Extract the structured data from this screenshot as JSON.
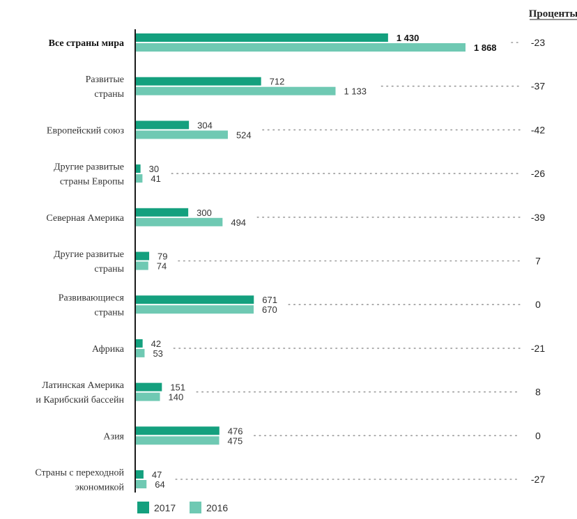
{
  "chart_data": {
    "type": "bar",
    "orientation": "horizontal",
    "percent_header": "Проценты",
    "categories": [
      {
        "lines": [
          "Все страны мира"
        ],
        "bold": true
      },
      {
        "lines": [
          "Развитые",
          "страны"
        ]
      },
      {
        "lines": [
          "Европейский союз"
        ]
      },
      {
        "lines": [
          "Другие развитые",
          "страны Европы"
        ]
      },
      {
        "lines": [
          "Северная Америка"
        ]
      },
      {
        "lines": [
          "Другие развитые",
          "страны"
        ]
      },
      {
        "lines": [
          "Развивающиеся",
          "страны"
        ]
      },
      {
        "lines": [
          "Африка"
        ]
      },
      {
        "lines": [
          "Латинская Америка",
          "и Карибский бассейн"
        ]
      },
      {
        "lines": [
          "Азия"
        ]
      },
      {
        "lines": [
          "Страны с переходной",
          "экономикой"
        ]
      }
    ],
    "series": [
      {
        "name": "2017",
        "color": "#14a07e",
        "values": [
          1430,
          712,
          304,
          30,
          300,
          79,
          671,
          42,
          151,
          476,
          47
        ],
        "labels": [
          "1 430",
          "712",
          "304",
          "30",
          "300",
          "79",
          "671",
          "42",
          "151",
          "476",
          "47"
        ]
      },
      {
        "name": "2016",
        "color": "#6fc9b3",
        "values": [
          1868,
          1133,
          524,
          41,
          494,
          74,
          670,
          53,
          140,
          475,
          64
        ],
        "labels": [
          "1 868",
          "1 133",
          "524",
          "41",
          "494",
          "74",
          "670",
          "53",
          "140",
          "475",
          "64"
        ]
      }
    ],
    "percent_change": [
      "-23",
      "-37",
      "-42",
      "-26",
      "-39",
      "7",
      "0",
      "-21",
      "8",
      "0",
      "-27"
    ],
    "xlim": [
      0,
      1868
    ],
    "legend_position": "bottom-left",
    "grid": false
  }
}
